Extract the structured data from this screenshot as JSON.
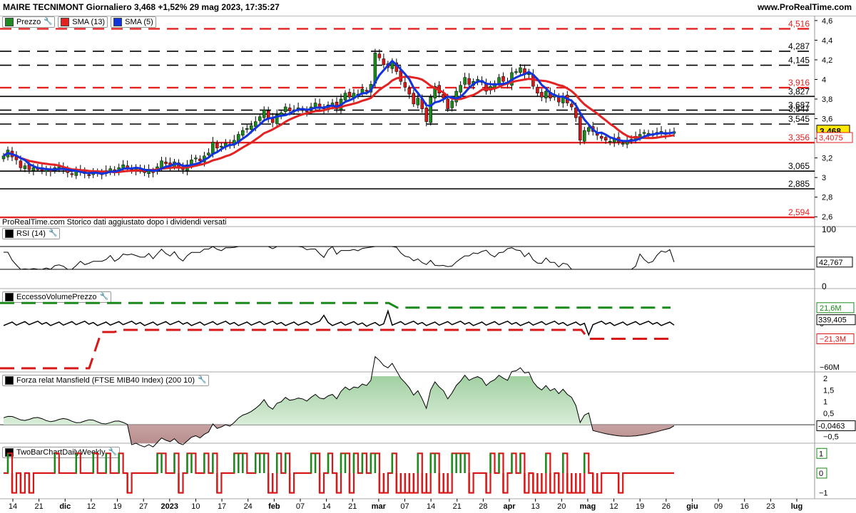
{
  "header": {
    "title": "MAIRE TECNIMONT Giornaliero 3,468 +1,52% 29 mag 2023, 17:35:27",
    "brand": "www.ProRealTime.com"
  },
  "legends": {
    "price": [
      {
        "label": "Prezzo",
        "color": "#228822",
        "icon": "candle-icon"
      },
      {
        "label": "SMA (13)",
        "color": "#e32222"
      },
      {
        "label": "SMA (5)",
        "color": "#1133dd"
      }
    ],
    "rsi": "RSI (14)",
    "evp": "EccessoVolumePrezzo",
    "mansfield": "Forza relat Mansfield (FTSE MIB40 Index) (200 10)",
    "twobar": "TwoBarChartDailyWeekly"
  },
  "note": "ProRealTime.com Storico dati aggiustato dopo i dividendi versati",
  "colors": {
    "up": "#1a8a1a",
    "down": "#d81818",
    "sma13": "#e32222",
    "sma5": "#1133dd",
    "hline_red": "#e32222",
    "hline_black": "#000000",
    "evp_green": "#1a8a1a"
  },
  "chart_data": [
    {
      "type": "candlestick",
      "panel": "price",
      "ylim": [
        2.5,
        4.65
      ],
      "yticks": [
        "4,6",
        "4,4",
        "4,2",
        "4",
        "3,8",
        "3,6",
        "3,4",
        "3,2",
        "3",
        "2,8",
        "2,6"
      ],
      "ytick_values": [
        4.6,
        4.4,
        4.2,
        4.0,
        3.8,
        3.6,
        3.4,
        3.2,
        3.0,
        2.8,
        2.6
      ],
      "xticks": [
        "14",
        "21",
        "dic",
        "12",
        "19",
        "27",
        "2023",
        "10",
        "17",
        "24",
        "feb",
        "07",
        "14",
        "21",
        "mar",
        "07",
        "14",
        "21",
        "28",
        "apr",
        "13",
        "20",
        "mag",
        "12",
        "19",
        "26",
        "giu",
        "09",
        "16",
        "23",
        "lug"
      ],
      "levels": [
        {
          "value": 4.516,
          "label": "4,516",
          "color": "red",
          "style": "dashed"
        },
        {
          "value": 4.287,
          "label": "4,287",
          "color": "black",
          "style": "dashed"
        },
        {
          "value": 4.145,
          "label": "4,145",
          "color": "black",
          "style": "dashed"
        },
        {
          "value": 3.916,
          "label": "3,916",
          "color": "red",
          "style": "dashed"
        },
        {
          "value": 3.827,
          "label": "3,827",
          "color": "black",
          "style": "solid"
        },
        {
          "value": 3.687,
          "label": "3,687",
          "color": "black",
          "style": "dashed"
        },
        {
          "value": 3.647,
          "label": "3,647",
          "color": "black",
          "style": "solid"
        },
        {
          "value": 3.545,
          "label": "3,545",
          "color": "black",
          "style": "dashed"
        },
        {
          "value": 3.356,
          "label": "3,356",
          "color": "red",
          "style": "solid"
        },
        {
          "value": 3.065,
          "label": "3,065",
          "color": "black",
          "style": "solid"
        },
        {
          "value": 2.885,
          "label": "2,885",
          "color": "black",
          "style": "solid"
        },
        {
          "value": 2.594,
          "label": "2,594",
          "color": "red",
          "style": "solid"
        }
      ],
      "last_price": {
        "value": 3.468,
        "label": "3,468"
      },
      "sma13_last": {
        "value": 3.4075,
        "label": "3,4075"
      },
      "closes": [
        3.22,
        3.28,
        3.21,
        3.18,
        3.1,
        3.12,
        3.08,
        3.1,
        3.09,
        3.07,
        3.09,
        3.06,
        3.1,
        3.11,
        3.08,
        3.05,
        3.03,
        3.07,
        3.06,
        3.04,
        3.02,
        3.06,
        3.05,
        3.03,
        3.07,
        3.09,
        3.06,
        3.1,
        3.13,
        3.09,
        3.08,
        3.1,
        3.07,
        3.05,
        3.08,
        3.05,
        3.11,
        3.17,
        3.14,
        3.12,
        3.16,
        3.1,
        3.08,
        3.13,
        3.18,
        3.2,
        3.17,
        3.22,
        3.25,
        3.36,
        3.3,
        3.32,
        3.35,
        3.33,
        3.38,
        3.44,
        3.48,
        3.5,
        3.53,
        3.57,
        3.62,
        3.69,
        3.6,
        3.56,
        3.64,
        3.66,
        3.72,
        3.68,
        3.69,
        3.71,
        3.7,
        3.67,
        3.72,
        3.76,
        3.71,
        3.7,
        3.74,
        3.76,
        3.7,
        3.8,
        3.86,
        3.82,
        3.86,
        3.85,
        3.9,
        3.88,
        3.95,
        4.27,
        4.22,
        4.15,
        4.12,
        4.18,
        4.08,
        3.98,
        3.92,
        3.85,
        3.75,
        3.81,
        3.7,
        3.57,
        3.82,
        3.93,
        3.86,
        3.81,
        3.7,
        3.78,
        3.88,
        3.94,
        4.02,
        3.95,
        3.98,
        4.0,
        3.97,
        3.88,
        3.93,
        3.96,
        4.02,
        3.98,
        3.95,
        4.07,
        4.08,
        4.12,
        4.05,
        4.06,
        3.93,
        3.86,
        3.82,
        3.88,
        3.81,
        3.84,
        3.77,
        3.83,
        3.76,
        3.72,
        3.61,
        3.38,
        3.48,
        3.51,
        3.47,
        3.43,
        3.4,
        3.38,
        3.37,
        3.4,
        3.36,
        3.35,
        3.38,
        3.39,
        3.42,
        3.44,
        3.46,
        3.45,
        3.43,
        3.46,
        3.47,
        3.44,
        3.46,
        3.468
      ]
    },
    {
      "type": "line",
      "panel": "rsi",
      "name": "RSI (14)",
      "ylim": [
        0,
        100
      ],
      "yticks": [
        "100",
        "0"
      ],
      "ytick_values": [
        100,
        0
      ],
      "bands": [
        70,
        30
      ],
      "last": {
        "value": 42.767,
        "label": "42,767"
      }
    },
    {
      "type": "line",
      "panel": "evp",
      "name": "EccessoVolumePrezzo",
      "ylim": [
        -65,
        45
      ],
      "yticks": [
        "21,6M",
        "0",
        "−21,3M",
        "−60M"
      ],
      "ytick_values": [
        21.6,
        0,
        -21.3,
        -60
      ],
      "upper_band": [
        {
          "x": 0,
          "y": 28
        },
        {
          "x": 545,
          "y": 28
        },
        {
          "x": 557,
          "y": 21.6
        },
        {
          "x": 940,
          "y": 21.6
        }
      ],
      "lower_band": [
        {
          "x": 0,
          "y": -62
        },
        {
          "x": 125,
          "y": -62
        },
        {
          "x": 142,
          "y": -12
        },
        {
          "x": 160,
          "y": -12
        },
        {
          "x": 172,
          "y": -9
        },
        {
          "x": 815,
          "y": -9
        },
        {
          "x": 825,
          "y": -21.3
        },
        {
          "x": 940,
          "y": -21.3
        }
      ],
      "last": {
        "value": 339.405,
        "label": "339,405"
      }
    },
    {
      "type": "area",
      "panel": "mansfield",
      "name": "Forza relat Mansfield (FTSE MIB40 Index) (200 10)",
      "ylim": [
        -0.8,
        2.1
      ],
      "yticks": [
        "2",
        "1,5",
        "1",
        "0,5",
        "0",
        "−0,5"
      ],
      "ytick_values": [
        2,
        1.5,
        1,
        0.5,
        0,
        -0.5
      ],
      "last": {
        "value": -0.0463,
        "label": "-0,0463"
      }
    },
    {
      "type": "step",
      "panel": "twobar",
      "name": "TwoBarChartDailyWeekly",
      "ylim": [
        -1.3,
        1.3
      ],
      "yticks": [
        "1",
        "0",
        "−1"
      ],
      "ytick_values": [
        1,
        0,
        -1
      ]
    }
  ]
}
